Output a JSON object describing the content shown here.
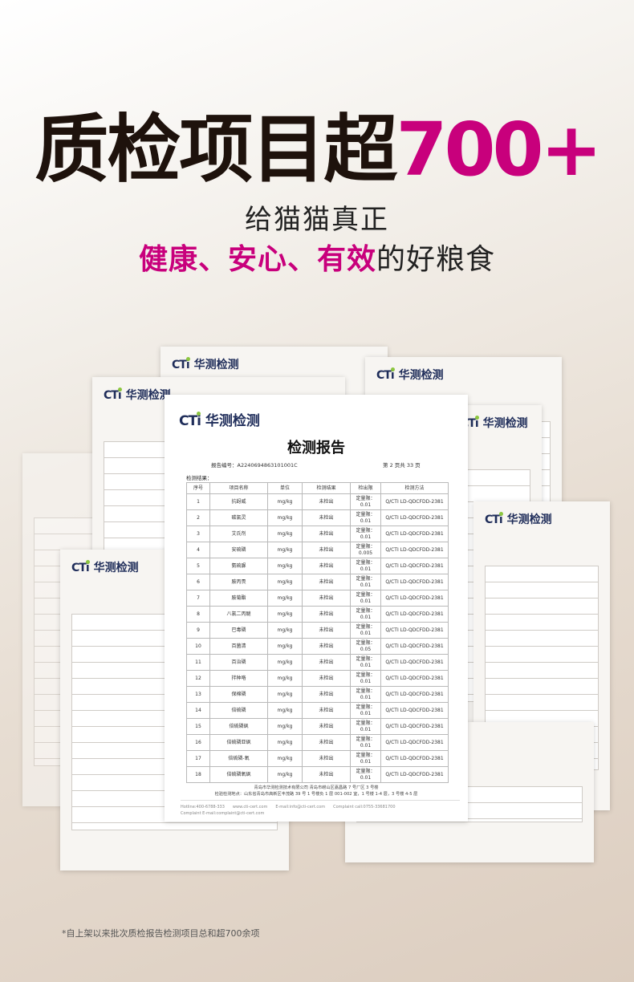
{
  "headline": {
    "text": "质检项目超",
    "number": "700+"
  },
  "subheadline": {
    "line1": "给猫猫真正",
    "hl1": "健康",
    "sep1": "、",
    "hl2": "安心",
    "sep2": "、",
    "hl3": "有效",
    "tail": "的好粮食"
  },
  "brand": {
    "mark": "CT",
    "mark_i": "i",
    "name": "华测检测"
  },
  "colors": {
    "accent": "#c8007c",
    "title": "#1e120c",
    "brand": "#1f2d5a",
    "brand_dot": "#8cc63f"
  },
  "report": {
    "title": "检测报告",
    "report_no": "报告编号：A2240694863101001C",
    "page": "第 2 页共 33 页",
    "results_label": "检测结果：",
    "columns": [
      "序号",
      "项目名称",
      "单位",
      "检测结果",
      "检出限",
      "检测方法"
    ],
    "rows": [
      [
        "1",
        "抗蚜威",
        "mg/kg",
        "未检出",
        "定量限：0.01",
        "Q/CTI LD-QDCFDD-2381"
      ],
      [
        "2",
        "碳氯灵",
        "mg/kg",
        "未检出",
        "定量限：0.01",
        "Q/CTI LD-QDCFDD-2381"
      ],
      [
        "3",
        "艾氏剂",
        "mg/kg",
        "未检出",
        "定量限：0.01",
        "Q/CTI LD-QDCFDD-2381"
      ],
      [
        "4",
        "安硫磷",
        "mg/kg",
        "未检出",
        "定量限：0.005",
        "Q/CTI LD-QDCFDD-2381"
      ],
      [
        "5",
        "氨硫脲",
        "mg/kg",
        "未检出",
        "定量限：0.01",
        "Q/CTI LD-QDCFDD-2381"
      ],
      [
        "6",
        "胺丙畏",
        "mg/kg",
        "未检出",
        "定量限：0.01",
        "Q/CTI LD-QDCFDD-2381"
      ],
      [
        "7",
        "胺菊酯",
        "mg/kg",
        "未检出",
        "定量限：0.01",
        "Q/CTI LD-QDCFDD-2381"
      ],
      [
        "8",
        "八氯二丙醚",
        "mg/kg",
        "未检出",
        "定量限：0.01",
        "Q/CTI LD-QDCFDD-2381"
      ],
      [
        "9",
        "巴毒磷",
        "mg/kg",
        "未检出",
        "定量限：0.01",
        "Q/CTI LD-QDCFDD-2381"
      ],
      [
        "10",
        "百菌清",
        "mg/kg",
        "未检出",
        "定量限：0.05",
        "Q/CTI LD-QDCFDD-2381"
      ],
      [
        "11",
        "百治磷",
        "mg/kg",
        "未检出",
        "定量限：0.01",
        "Q/CTI LD-QDCFDD-2381"
      ],
      [
        "12",
        "拌种咯",
        "mg/kg",
        "未检出",
        "定量限：0.01",
        "Q/CTI LD-QDCFDD-2381"
      ],
      [
        "13",
        "保棉磷",
        "mg/kg",
        "未检出",
        "定量限：0.01",
        "Q/CTI LD-QDCFDD-2381"
      ],
      [
        "14",
        "倍硫磷",
        "mg/kg",
        "未检出",
        "定量限：0.01",
        "Q/CTI LD-QDCFDD-2381"
      ],
      [
        "15",
        "倍硫磷砜",
        "mg/kg",
        "未检出",
        "定量限：0.01",
        "Q/CTI LD-QDCFDD-2381"
      ],
      [
        "16",
        "倍硫磷亚砜",
        "mg/kg",
        "未检出",
        "定量限：0.01",
        "Q/CTI LD-QDCFDD-2381"
      ],
      [
        "17",
        "倍硫磷-氧",
        "mg/kg",
        "未检出",
        "定量限：0.01",
        "Q/CTI LD-QDCFDD-2381"
      ],
      [
        "18",
        "倍硫磷氧砜",
        "mg/kg",
        "未检出",
        "定量限：0.01",
        "Q/CTI LD-QDCFDD-2381"
      ]
    ],
    "footer_company": "青岛市华测检测技术有限公司 青岛市崂山区嘉昌路 7 号厂区 3 号楼",
    "footer_address": "检验检测地点：山东省青岛市高新区丰茂路 39 号 1 号楼负 1 层 001-002 室，1 号楼 1-4 层，3 号楼 4-5 层",
    "contacts": [
      "Hotline:400-6788-333",
      "www.cti-cert.com",
      "E-mail:info@cti-cert.com",
      "Complaint call:0755-33681700",
      "Complaint E-mail:complaint@cti-cert.com"
    ]
  },
  "footnote": "*自上架以来批次质检报告检测项目总和超700余项"
}
